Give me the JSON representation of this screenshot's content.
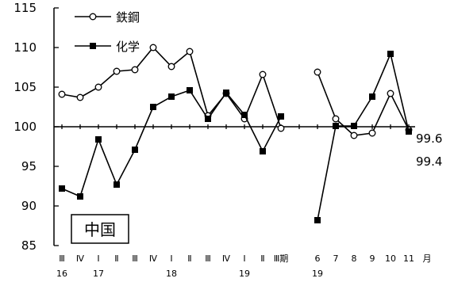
{
  "chart_data": {
    "type": "line",
    "categories": [
      "Ⅲ",
      "Ⅳ",
      "Ⅰ",
      "Ⅱ",
      "Ⅲ",
      "Ⅳ",
      "Ⅰ",
      "Ⅱ",
      "Ⅲ",
      "Ⅳ",
      "Ⅰ",
      "Ⅱ",
      "Ⅲ期",
      "",
      "6",
      "7",
      "8",
      "9",
      "10",
      "11",
      "月"
    ],
    "year_labels": [
      {
        "index": 0,
        "label": "16"
      },
      {
        "index": 2,
        "label": "17"
      },
      {
        "index": 6,
        "label": "18"
      },
      {
        "index": 10,
        "label": "19"
      },
      {
        "index": 14,
        "label": "19"
      }
    ],
    "y_ticks": [
      85,
      90,
      95,
      100,
      105,
      110,
      115
    ],
    "ylim": [
      85,
      115
    ],
    "series": [
      {
        "name": "鉄鋼",
        "marker": "open-circle",
        "segments": [
          [
            [
              0,
              104.1
            ],
            [
              1,
              103.7
            ],
            [
              2,
              105.0
            ],
            [
              3,
              107.0
            ],
            [
              4,
              107.2
            ],
            [
              5,
              110.0
            ],
            [
              6,
              107.6
            ],
            [
              7,
              109.5
            ],
            [
              8,
              101.4
            ],
            [
              9,
              104.2
            ],
            [
              10,
              101.0
            ],
            [
              11,
              106.6
            ],
            [
              12,
              99.8
            ]
          ],
          [
            [
              14,
              106.9
            ],
            [
              15,
              101.0
            ],
            [
              16,
              98.9
            ],
            [
              17,
              99.2
            ],
            [
              18,
              104.2
            ],
            [
              19,
              99.6
            ]
          ]
        ]
      },
      {
        "name": "化学",
        "marker": "filled-square",
        "segments": [
          [
            [
              0,
              92.2
            ],
            [
              1,
              91.2
            ],
            [
              2,
              98.4
            ],
            [
              3,
              92.7
            ],
            [
              4,
              97.1
            ],
            [
              5,
              102.5
            ],
            [
              6,
              103.8
            ],
            [
              7,
              104.6
            ],
            [
              8,
              101.0
            ],
            [
              9,
              104.3
            ],
            [
              10,
              101.5
            ],
            [
              11,
              96.9
            ],
            [
              12,
              101.3
            ]
          ],
          [
            [
              14,
              88.2
            ],
            [
              15,
              100.1
            ],
            [
              16,
              100.1
            ],
            [
              17,
              103.8
            ],
            [
              18,
              109.2
            ],
            [
              19,
              99.4
            ]
          ]
        ]
      }
    ],
    "end_labels": [
      "99.6",
      "99.4"
    ],
    "region_label": "中国"
  }
}
